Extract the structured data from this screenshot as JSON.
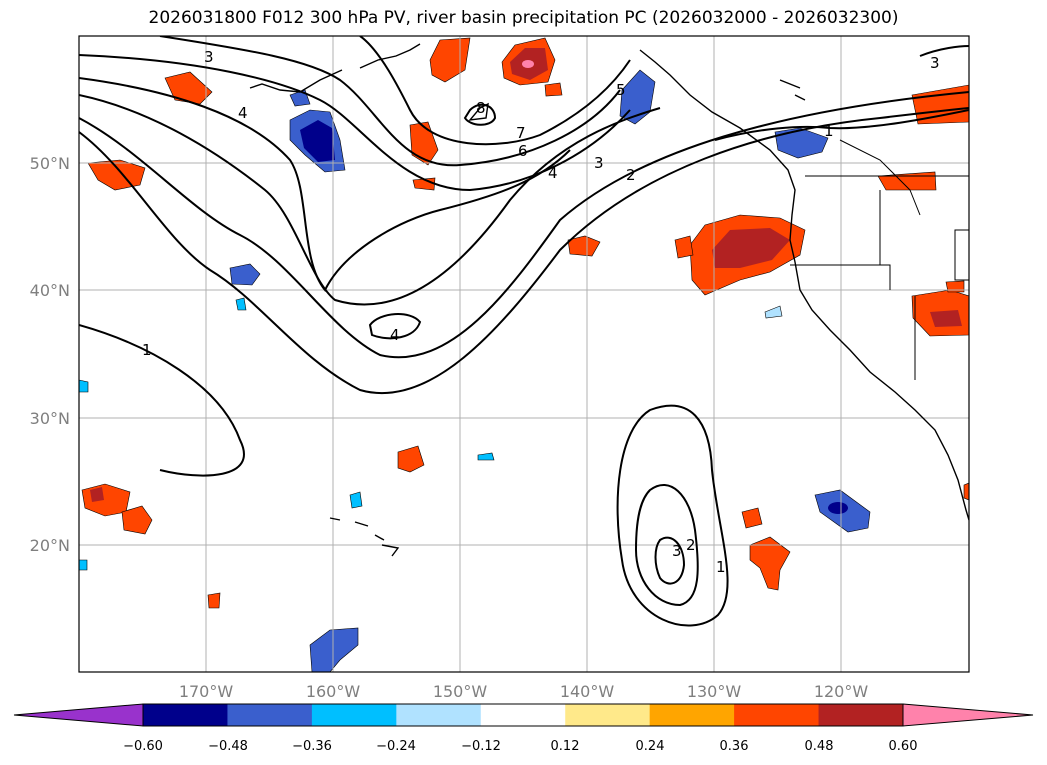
{
  "title": "2026031800 F012 300 hPa PV, river basin precipitation PC (2026032000 - 2026032300)",
  "lon_labels": [
    "170°W",
    "160°W",
    "150°W",
    "140°W",
    "130°W",
    "120°W"
  ],
  "lat_labels": [
    "50°N",
    "40°N",
    "30°N",
    "20°N"
  ],
  "colorbar": {
    "ticks": [
      "−0.60",
      "−0.48",
      "−0.36",
      "−0.24",
      "−0.12",
      "0.12",
      "0.24",
      "0.36",
      "0.48",
      "0.60"
    ],
    "colors": [
      "#9932cc",
      "#00008b",
      "#3a5fcd",
      "#00bfff",
      "#b0e2ff",
      "#ffffff",
      "#ffe98a",
      "#ffa500",
      "#ff4500",
      "#b22222",
      "#ff82ab"
    ]
  },
  "contour_labels": [
    "3",
    "4",
    "8",
    "7",
    "6",
    "5",
    "4",
    "3",
    "2",
    "1",
    "3",
    "1",
    "4",
    "2",
    "3",
    "1"
  ]
}
